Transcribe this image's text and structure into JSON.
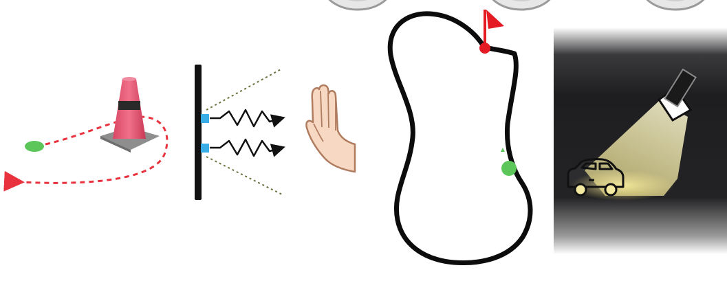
{
  "panels": [
    {
      "id": "cone-maneuver",
      "description_icons": [
        "traffic-cone-icon",
        "start-dot-icon",
        "dashed-path-arrow-icon"
      ]
    },
    {
      "id": "proximity-sensor",
      "description_icons": [
        "sensor-wall-icon",
        "signal-wave-icon",
        "stop-hand-icon"
      ]
    },
    {
      "id": "track-course",
      "description_icons": [
        "track-loop-icon",
        "finish-flag-icon",
        "start-marker-icon"
      ]
    },
    {
      "id": "night-light",
      "description_icons": [
        "flashlight-icon",
        "light-beam-icon",
        "car-icon"
      ]
    }
  ],
  "colors": {
    "path_red": "#e8333f",
    "cone_pink": "#e2506a",
    "cone_band": "#2a2a2a",
    "cone_base": "#8e8e8e",
    "start_green": "#5cc65a",
    "sensor_blue": "#39aee6",
    "track_black": "#0c0c0c",
    "flag_red": "#e41b23",
    "night_bg": "#1e1e20",
    "beam_yellow": "#fff3a8",
    "skin": "#f7d8c2",
    "skin_line": "#b07c60"
  }
}
